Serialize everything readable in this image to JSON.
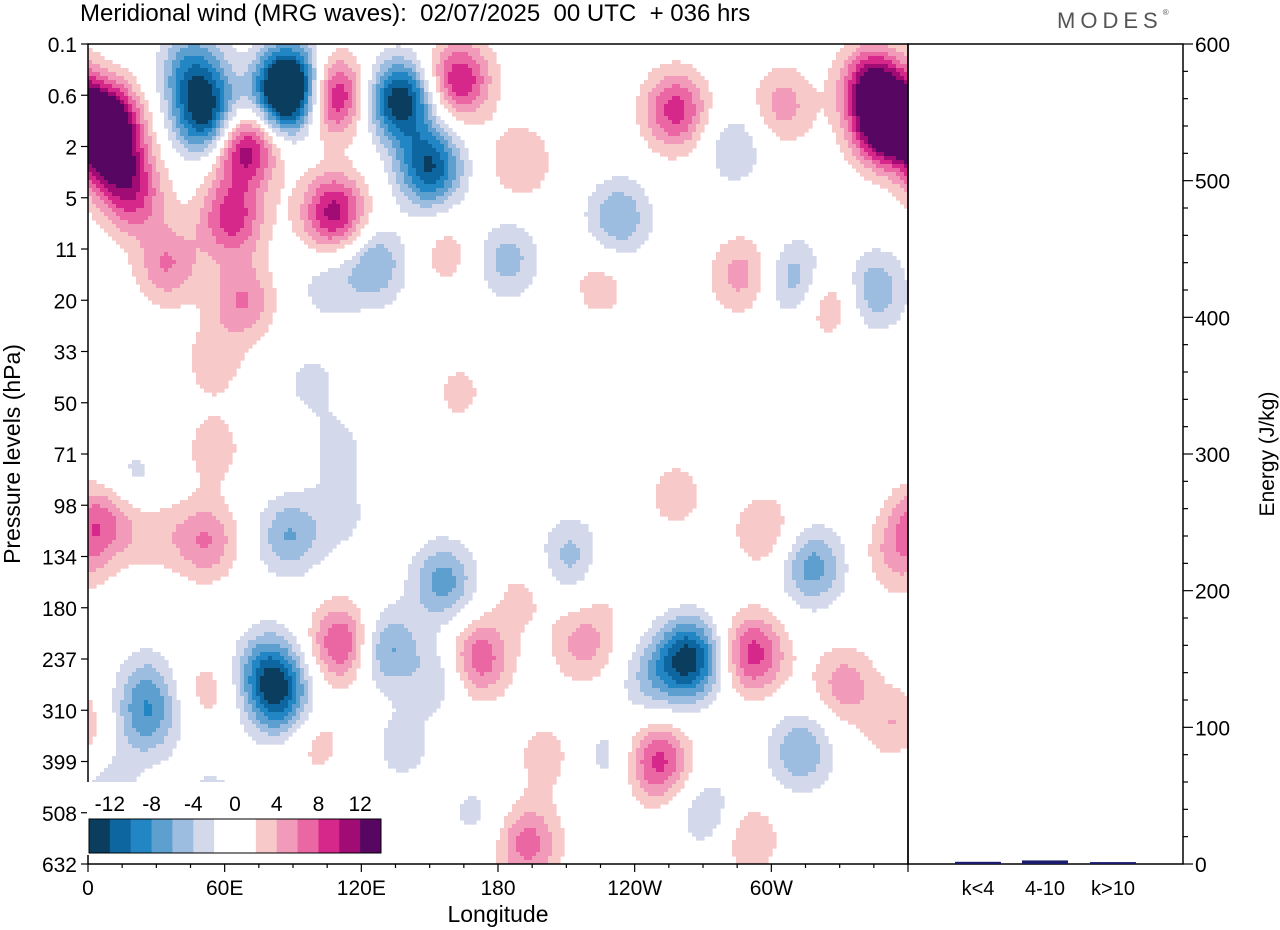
{
  "title": "Meridional wind (MRG waves):  02/07/2025  00 UTC  + 036 hrs",
  "logo": "MODES",
  "logo_mark": "®",
  "chart_data": [
    {
      "type": "heatmap",
      "title": "Meridional wind (MRG waves):  02/07/2025  00 UTC  + 036 hrs",
      "xlabel": "Longitude",
      "ylabel": "Pressure levels (hPa)",
      "x_ticks": [
        "0",
        "60E",
        "120E",
        "180",
        "120W",
        "60W"
      ],
      "x_tick_degrees": [
        0,
        60,
        120,
        180,
        240,
        300
      ],
      "xlim": [
        0,
        360
      ],
      "y_ticks": [
        "0.1",
        "0.6",
        "2",
        "5",
        "11",
        "20",
        "33",
        "50",
        "71",
        "98",
        "134",
        "180",
        "237",
        "310",
        "399",
        "508",
        "632"
      ],
      "colorbar": {
        "labels": [
          "-12",
          "-8",
          "-4",
          "0",
          "4",
          "8",
          "12"
        ],
        "levels": [
          -14,
          -12,
          -10,
          -8,
          -6,
          -4,
          -2,
          0,
          2,
          4,
          6,
          8,
          10,
          12,
          14
        ],
        "colors": [
          "#0b3d5e",
          "#0d66a0",
          "#2386c4",
          "#5d9fcf",
          "#9cbddf",
          "#d3d8ea",
          "#ffffff",
          "#ffffff",
          "#f7c9c9",
          "#f29ab9",
          "#ea67a3",
          "#d6278b",
          "#a10b74",
          "#570761"
        ],
        "placement": "bottom-left"
      },
      "blobs": [
        {
          "lon": 8,
          "lev": 1.5,
          "v": 15
        },
        {
          "lon": 20,
          "lev": 3.0,
          "v": 7
        },
        {
          "lon": 12,
          "lev": 2.3,
          "v": 9
        },
        {
          "lon": 52,
          "lev": 1.4,
          "v": -13
        },
        {
          "lon": 46,
          "lev": 0.5,
          "v": -8
        },
        {
          "lon": 63,
          "lev": 3.4,
          "v": 9
        },
        {
          "lon": 69,
          "lev": 2.0,
          "v": 12
        },
        {
          "lon": 87,
          "lev": 1.0,
          "v": -14
        },
        {
          "lon": 90,
          "lev": 0.7,
          "v": -9
        },
        {
          "lon": 108,
          "lev": 3.3,
          "v": 11
        },
        {
          "lon": 107,
          "lev": 1.0,
          "v": 12
        },
        {
          "lon": 137,
          "lev": 1.1,
          "v": -14
        },
        {
          "lon": 150,
          "lev": 2.4,
          "v": -12
        },
        {
          "lon": 163,
          "lev": 0.7,
          "v": 10
        },
        {
          "lon": 190,
          "lev": 2.3,
          "v": 4
        },
        {
          "lon": 233,
          "lev": 3.4,
          "v": -6
        },
        {
          "lon": 258,
          "lev": 1.3,
          "v": 9
        },
        {
          "lon": 284,
          "lev": 2.0,
          "v": -4
        },
        {
          "lon": 305,
          "lev": 1.2,
          "v": 5
        },
        {
          "lon": 345,
          "lev": 0.8,
          "v": 12
        },
        {
          "lon": 350,
          "lev": 1.6,
          "v": 15
        },
        {
          "lon": 35,
          "lev": 4.3,
          "v": 6
        },
        {
          "lon": 68,
          "lev": 5.0,
          "v": 6
        },
        {
          "lon": 105,
          "lev": 4.7,
          "v": -3
        },
        {
          "lon": 126,
          "lev": 4.3,
          "v": -6
        },
        {
          "lon": 158,
          "lev": 4.1,
          "v": 3
        },
        {
          "lon": 184,
          "lev": 4.2,
          "v": -5
        },
        {
          "lon": 225,
          "lev": 4.7,
          "v": 3
        },
        {
          "lon": 287,
          "lev": 4.5,
          "v": 5
        },
        {
          "lon": 311,
          "lev": 4.6,
          "v": -6
        },
        {
          "lon": 325,
          "lev": 5.0,
          "v": 5
        },
        {
          "lon": 345,
          "lev": 4.8,
          "v": -6
        },
        {
          "lon": 55,
          "lev": 6.2,
          "v": 3
        },
        {
          "lon": 98,
          "lev": 6.6,
          "v": -2.5
        },
        {
          "lon": 163,
          "lev": 6.8,
          "v": 2.5
        },
        {
          "lon": 110,
          "lev": 7.9,
          "v": -2.5
        },
        {
          "lon": 55,
          "lev": 7.9,
          "v": 3
        },
        {
          "lon": 20,
          "lev": 8.5,
          "v": -3
        },
        {
          "lon": 6,
          "lev": 9.3,
          "v": 7
        },
        {
          "lon": 29,
          "lev": 9.5,
          "v": 3
        },
        {
          "lon": 52,
          "lev": 9.7,
          "v": 6
        },
        {
          "lon": 88,
          "lev": 9.6,
          "v": -6
        },
        {
          "lon": 111,
          "lev": 9.2,
          "v": -2.5
        },
        {
          "lon": 112,
          "lev": 11.7,
          "v": 9
        },
        {
          "lon": 130,
          "lev": 11.8,
          "v": -7
        },
        {
          "lon": 156,
          "lev": 10.5,
          "v": -7
        },
        {
          "lon": 155,
          "lev": 12.3,
          "v": -4
        },
        {
          "lon": 171,
          "lev": 12.0,
          "v": 8
        },
        {
          "lon": 190,
          "lev": 10.8,
          "v": 2.5
        },
        {
          "lon": 213,
          "lev": 10.0,
          "v": -5
        },
        {
          "lon": 230,
          "lev": 10.3,
          "v": 2.5
        },
        {
          "lon": 218,
          "lev": 11.7,
          "v": 5
        },
        {
          "lon": 258,
          "lev": 8.8,
          "v": 3
        },
        {
          "lon": 247,
          "lev": 12.4,
          "v": -4
        },
        {
          "lon": 264,
          "lev": 12.0,
          "v": -13
        },
        {
          "lon": 292,
          "lev": 11.9,
          "v": 9
        },
        {
          "lon": 297,
          "lev": 9.5,
          "v": 4
        },
        {
          "lon": 318,
          "lev": 10.2,
          "v": -7
        },
        {
          "lon": 332,
          "lev": 12.5,
          "v": 5
        },
        {
          "lon": 355,
          "lev": 10.0,
          "v": 4
        },
        {
          "lon": 26,
          "lev": 12.5,
          "v": -4
        },
        {
          "lon": 26,
          "lev": 13.2,
          "v": -6
        },
        {
          "lon": 52,
          "lev": 12.6,
          "v": 3
        },
        {
          "lon": 79,
          "lev": 12.2,
          "v": -8
        },
        {
          "lon": 84,
          "lev": 12.8,
          "v": -9
        },
        {
          "lon": 100,
          "lev": 13.6,
          "v": 3
        },
        {
          "lon": 138,
          "lev": 13.7,
          "v": -3
        },
        {
          "lon": 193,
          "lev": 15.6,
          "v": 7
        },
        {
          "lon": 201,
          "lev": 13.9,
          "v": 3
        },
        {
          "lon": 229,
          "lev": 13.9,
          "v": -3
        },
        {
          "lon": 250,
          "lev": 14.0,
          "v": 9
        },
        {
          "lon": 272,
          "lev": 15.0,
          "v": -4
        },
        {
          "lon": 313,
          "lev": 13.8,
          "v": -6
        },
        {
          "lon": 355,
          "lev": 13.3,
          "v": 4
        },
        {
          "lon": 9,
          "lev": 14.5,
          "v": -3
        },
        {
          "lon": 54,
          "lev": 14.8,
          "v": -3
        },
        {
          "lon": 170,
          "lev": 15.0,
          "v": -2.5
        },
        {
          "lon": 290,
          "lev": 15.5,
          "v": 4
        }
      ]
    },
    {
      "type": "bar",
      "categories": [
        "k<4",
        "4-10",
        "k>10"
      ],
      "values": [
        0.5,
        1.5,
        0.3
      ],
      "ylabel": "Energy (J/kg)",
      "ylim": [
        0,
        600
      ],
      "y_ticks": [
        0,
        100,
        200,
        300,
        400,
        500,
        600
      ],
      "bar_color": "#1a1a6e"
    }
  ]
}
